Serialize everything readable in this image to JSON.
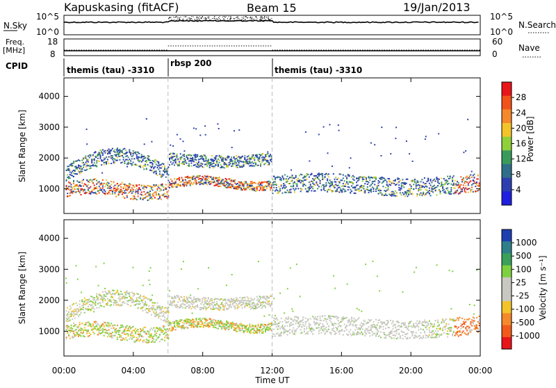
{
  "header": {
    "station": "Kapuskasing (fitACF)",
    "beam": "Beam 15",
    "date": "19/Jan/2013"
  },
  "panels": {
    "nsky": {
      "label": "N.Sky",
      "left_ticks": [
        "10^5",
        "10^0"
      ],
      "right_ticks": [
        "10^5",
        "10^0"
      ],
      "right_label": "N.Search"
    },
    "freq": {
      "label_line1": "Freq.",
      "label_line2": "[MHz]",
      "left_ticks": [
        "18",
        "8"
      ],
      "right_ticks": [
        "60",
        "0"
      ],
      "right_label": "Nave"
    },
    "cpid": {
      "label": "CPID",
      "segments": [
        "themis (tau) -3310",
        "rbsp 200",
        "themis (tau) -3310"
      ]
    }
  },
  "chart_data": [
    {
      "type": "heatmap",
      "name": "power",
      "ylabel": "Slant Range [km]",
      "xlabel": "Time UT",
      "xlim": [
        0,
        24
      ],
      "ylim": [
        200,
        4600
      ],
      "y_ticks": [
        "4000",
        "3000",
        "2000",
        "1000"
      ],
      "x_ticks": [
        "00:00",
        "04:00",
        "08:00",
        "12:00",
        "16:00",
        "20:00",
        "00:00"
      ],
      "colorbar": {
        "label": "Power [dB]",
        "ticks": [
          "28",
          "24",
          "20",
          "16",
          "12",
          "8",
          "4"
        ],
        "colors": [
          "#e8151a",
          "#f2521a",
          "#f5882a",
          "#f2c42a",
          "#8fcf3a",
          "#3a9a5a",
          "#2f6f8a",
          "#2d3fb0",
          "#1f1fe0"
        ]
      }
    },
    {
      "type": "heatmap",
      "name": "velocity",
      "ylabel": "Slant Range [km]",
      "xlabel": "Time UT",
      "xlim": [
        0,
        24
      ],
      "ylim": [
        200,
        4600
      ],
      "y_ticks": [
        "4000",
        "3000",
        "2000",
        "1000"
      ],
      "x_ticks": [
        "00:00",
        "04:00",
        "08:00",
        "12:00",
        "16:00",
        "20:00",
        "00:00"
      ],
      "colorbar": {
        "label": "Velocity [m s⁻¹]",
        "ticks": [
          "1000",
          "500",
          "100",
          "25",
          "-25",
          "-100",
          "-500",
          "-1000"
        ],
        "colors": [
          "#1f3fb0",
          "#2f7f8a",
          "#3aa05a",
          "#7fd040",
          "#c8c8c0",
          "#c8c8c0",
          "#f2c42a",
          "#f5882a",
          "#f25a1a",
          "#e8151a"
        ]
      }
    }
  ]
}
